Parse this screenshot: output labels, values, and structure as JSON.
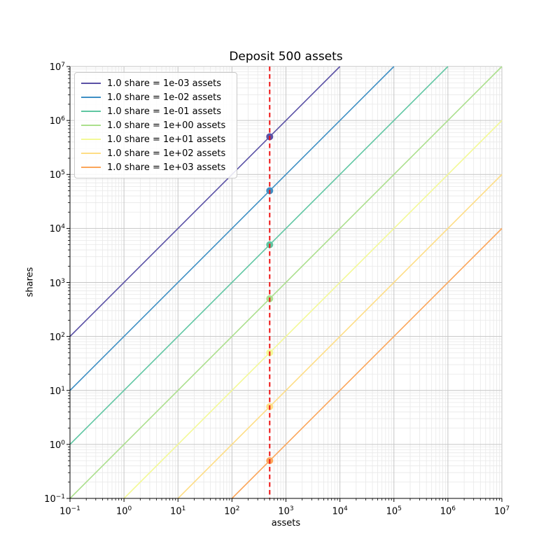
{
  "chart_data": {
    "type": "line",
    "title": "Deposit 500 assets",
    "xlabel": "assets",
    "ylabel": "shares",
    "xscale": "log",
    "yscale": "log",
    "xlim": [
      0.1,
      10000000
    ],
    "ylim": [
      0.1,
      10000000
    ],
    "grid": "major and minor, light gray",
    "legend_position": "upper left",
    "tick_exponents": [
      -1,
      0,
      1,
      2,
      3,
      4,
      5,
      6,
      7
    ],
    "deposit": {
      "assets": 500,
      "line_color": "#ee1111",
      "line_style": "dashed"
    },
    "series": [
      {
        "label": "1.0 share = 1e-03 assets",
        "assets_per_share": 0.001,
        "color": "#5a50a5",
        "marker_x": 500,
        "marker_y": 500000
      },
      {
        "label": "1.0 share = 1e-02 assets",
        "assets_per_share": 0.01,
        "color": "#3e8fc4",
        "marker_x": 500,
        "marker_y": 50000
      },
      {
        "label": "1.0 share = 1e-01 assets",
        "assets_per_share": 0.1,
        "color": "#5fc6a2",
        "marker_x": 500,
        "marker_y": 5000
      },
      {
        "label": "1.0 share = 1e+00 assets",
        "assets_per_share": 1,
        "color": "#abdf8c",
        "marker_x": 500,
        "marker_y": 500
      },
      {
        "label": "1.0 share = 1e+01 assets",
        "assets_per_share": 10,
        "color": "#f3f996",
        "marker_x": 500,
        "marker_y": 50
      },
      {
        "label": "1.0 share = 1e+02 assets",
        "assets_per_share": 100,
        "color": "#fedd85",
        "marker_x": 500,
        "marker_y": 5
      },
      {
        "label": "1.0 share = 1e+03 assets",
        "assets_per_share": 1000,
        "color": "#fba65a",
        "marker_x": 500,
        "marker_y": 0.5
      }
    ]
  }
}
